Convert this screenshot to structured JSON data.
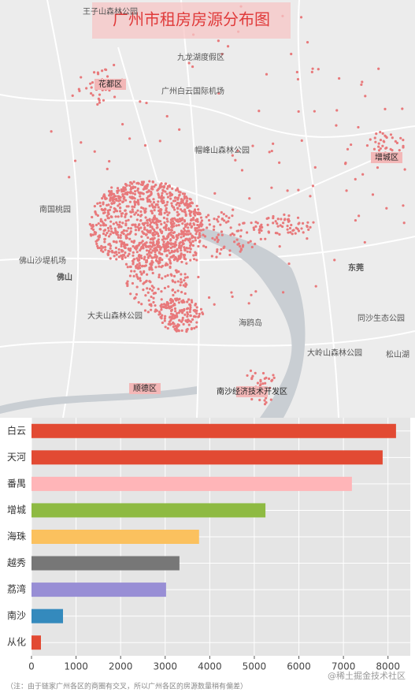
{
  "map": {
    "title": "广州市租房房源分布图",
    "labels": [
      "王子山森林公园",
      "九龙湖度假区",
      "花都区",
      "广州白云国际机场",
      "帽峰山森林公园",
      "增城区",
      "南国桃园",
      "佛山沙堤机场",
      "佛山",
      "东莞",
      "大夫山森林公园",
      "海鸥岛",
      "同沙生态公园",
      "大岭山森林公园",
      "松山湖",
      "顺德区",
      "南沙经济技术开发区"
    ]
  },
  "chart_data": {
    "type": "bar",
    "orientation": "horizontal",
    "categories": [
      "白云",
      "天河",
      "番禺",
      "增城",
      "海珠",
      "越秀",
      "荔湾",
      "南沙",
      "从化"
    ],
    "values": [
      8180,
      7880,
      7190,
      5250,
      3760,
      3320,
      3020,
      707,
      212
    ],
    "colors": [
      "#e24a33",
      "#e24a33",
      "#ffb5b8",
      "#8eba42",
      "#fbc15e",
      "#777777",
      "#988ed5",
      "#348abd",
      "#e24a33"
    ],
    "xlim": [
      0,
      8500
    ],
    "xticks": [
      0,
      1000,
      2000,
      3000,
      4000,
      5000,
      6000,
      7000,
      8000
    ],
    "grid": true
  },
  "footnote": "（注：由于链家广州各区的商圈有交叉，所以广州各区的房源数量稍有偏差）",
  "watermark": "@稀土掘金技术社区"
}
